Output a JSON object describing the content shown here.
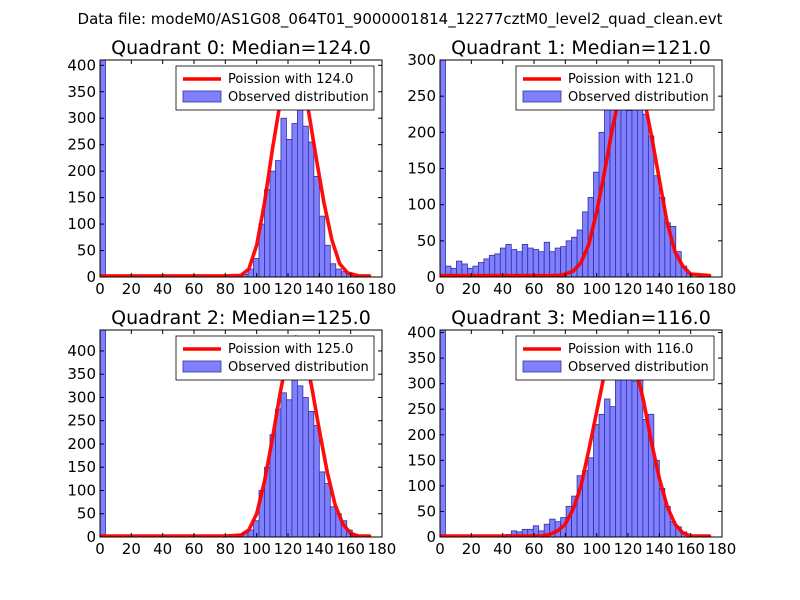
{
  "figure": {
    "suptitle": "Data file: modeM0/AS1G08_064T01_9000001814_12277cztM0_level2_quad_clean.evt"
  },
  "colors": {
    "bar_fill": "#8080ff",
    "bar_edge": "#3030a0",
    "model_line": "#ff0000",
    "axes": "#000000",
    "legend_edge": "#000000"
  },
  "chart_data": [
    {
      "type": "bar",
      "title": "Quadrant 0: Median=124.0",
      "xlabel": "",
      "ylabel": "",
      "xlim": [
        0,
        180
      ],
      "ylim": [
        0,
        410
      ],
      "xticks": [
        0,
        20,
        40,
        60,
        80,
        100,
        120,
        140,
        160,
        180
      ],
      "yticks": [
        0,
        50,
        100,
        150,
        200,
        250,
        300,
        350,
        400
      ],
      "grid": false,
      "legend": {
        "placement": "top-right",
        "entries": [
          "Poission with 124.0",
          "Observed distribution"
        ]
      },
      "series": [
        {
          "name": "Observed distribution",
          "kind": "histogram",
          "bin_width": 3.5,
          "bin_starts": [
            0,
            91,
            94.5,
            98,
            101.5,
            105,
            108.5,
            112,
            115.5,
            119,
            122.5,
            126,
            129.5,
            133,
            136.5,
            140,
            143.5,
            147,
            150.5,
            154,
            157.5
          ],
          "counts": [
            410,
            5,
            15,
            35,
            100,
            165,
            200,
            220,
            300,
            260,
            290,
            355,
            285,
            255,
            190,
            115,
            60,
            25,
            15,
            10,
            5
          ]
        },
        {
          "name": "Poission with 124.0",
          "kind": "line",
          "x": [
            0,
            60,
            80,
            90,
            95,
            100,
            105,
            110,
            115,
            120,
            124,
            128,
            133,
            138,
            143,
            148,
            153,
            158,
            165,
            172
          ],
          "y": [
            2,
            2,
            2,
            3,
            15,
            60,
            140,
            240,
            330,
            385,
            395,
            380,
            315,
            225,
            140,
            70,
            25,
            8,
            2,
            2
          ]
        }
      ]
    },
    {
      "type": "bar",
      "title": "Quadrant 1: Median=121.0",
      "xlabel": "",
      "ylabel": "",
      "xlim": [
        0,
        180
      ],
      "ylim": [
        0,
        300
      ],
      "xticks": [
        0,
        20,
        40,
        60,
        80,
        100,
        120,
        140,
        160,
        180
      ],
      "yticks": [
        0,
        50,
        100,
        150,
        200,
        250,
        300
      ],
      "grid": false,
      "legend": {
        "placement": "top-right",
        "entries": [
          "Poission with 121.0",
          "Observed distribution"
        ]
      },
      "series": [
        {
          "name": "Observed distribution",
          "kind": "histogram",
          "bin_width": 3.5,
          "bin_starts": [
            0,
            3.5,
            7,
            10.5,
            14,
            17.5,
            21,
            24.5,
            28,
            31.5,
            35,
            38.5,
            42,
            45.5,
            49,
            52.5,
            56,
            59.5,
            63,
            66.5,
            70,
            73.5,
            77,
            80.5,
            84,
            87.5,
            91,
            94.5,
            98,
            101.5,
            105,
            108.5,
            112,
            115.5,
            119,
            122.5,
            126,
            129.5,
            133,
            136.5,
            140,
            143.5,
            147,
            150.5,
            154,
            157.5
          ],
          "counts": [
            300,
            15,
            12,
            22,
            18,
            12,
            15,
            20,
            25,
            30,
            32,
            40,
            45,
            38,
            35,
            45,
            40,
            38,
            35,
            48,
            35,
            40,
            42,
            50,
            55,
            65,
            90,
            110,
            145,
            200,
            240,
            280,
            270,
            290,
            230,
            280,
            250,
            225,
            195,
            140,
            110,
            75,
            70,
            35,
            15,
            5
          ]
        },
        {
          "name": "Poission with 121.0",
          "kind": "line",
          "x": [
            0,
            60,
            75,
            80,
            85,
            90,
            95,
            100,
            105,
            110,
            115,
            121,
            126,
            130,
            135,
            140,
            145,
            150,
            155,
            160,
            172
          ],
          "y": [
            2,
            2,
            2,
            4,
            8,
            20,
            45,
            90,
            145,
            205,
            255,
            290,
            280,
            250,
            195,
            135,
            75,
            35,
            15,
            4,
            2
          ]
        }
      ]
    },
    {
      "type": "bar",
      "title": "Quadrant 2: Median=125.0",
      "xlabel": "",
      "ylabel": "",
      "xlim": [
        0,
        180
      ],
      "ylim": [
        0,
        445
      ],
      "xticks": [
        0,
        20,
        40,
        60,
        80,
        100,
        120,
        140,
        160,
        180
      ],
      "yticks": [
        0,
        50,
        100,
        150,
        200,
        250,
        300,
        350,
        400
      ],
      "grid": false,
      "legend": {
        "placement": "top-right",
        "entries": [
          "Poission with 125.0",
          "Observed distribution"
        ]
      },
      "series": [
        {
          "name": "Observed distribution",
          "kind": "histogram",
          "bin_width": 3.5,
          "bin_starts": [
            0,
            87.5,
            91,
            94.5,
            98,
            101.5,
            105,
            108.5,
            112,
            115.5,
            119,
            122.5,
            126,
            129.5,
            133,
            136.5,
            140,
            143.5,
            147,
            150.5,
            154,
            157.5,
            161
          ],
          "counts": [
            445,
            5,
            10,
            15,
            35,
            100,
            150,
            220,
            275,
            310,
            295,
            430,
            325,
            300,
            270,
            240,
            140,
            115,
            65,
            50,
            35,
            15,
            5
          ]
        },
        {
          "name": "Poission with 125.0",
          "kind": "line",
          "x": [
            0,
            60,
            80,
            90,
            95,
            100,
            105,
            110,
            115,
            120,
            125,
            130,
            135,
            140,
            145,
            150,
            155,
            160,
            165,
            172
          ],
          "y": [
            2,
            2,
            2,
            4,
            15,
            50,
            120,
            210,
            310,
            395,
            430,
            405,
            325,
            230,
            140,
            70,
            28,
            8,
            2,
            2
          ]
        }
      ]
    },
    {
      "type": "bar",
      "title": "Quadrant 3: Median=116.0",
      "xlabel": "",
      "ylabel": "",
      "xlim": [
        0,
        180
      ],
      "ylim": [
        0,
        405
      ],
      "xticks": [
        0,
        20,
        40,
        60,
        80,
        100,
        120,
        140,
        160,
        180
      ],
      "yticks": [
        0,
        50,
        100,
        150,
        200,
        250,
        300,
        350,
        400
      ],
      "grid": false,
      "legend": {
        "placement": "top-right",
        "entries": [
          "Poission with 116.0",
          "Observed distribution"
        ]
      },
      "series": [
        {
          "name": "Observed distribution",
          "kind": "histogram",
          "bin_width": 3.5,
          "bin_starts": [
            0,
            42,
            45.5,
            49,
            52.5,
            56,
            59.5,
            63,
            66.5,
            70,
            73.5,
            77,
            80.5,
            84,
            87.5,
            91,
            94.5,
            98,
            101.5,
            105,
            108.5,
            112,
            115.5,
            119,
            122.5,
            126,
            129.5,
            133,
            136.5,
            140,
            143.5,
            147,
            150.5,
            154
          ],
          "counts": [
            405,
            5,
            12,
            10,
            15,
            15,
            22,
            12,
            25,
            35,
            30,
            38,
            60,
            80,
            120,
            130,
            155,
            220,
            240,
            270,
            255,
            325,
            320,
            360,
            305,
            320,
            230,
            240,
            150,
            95,
            60,
            30,
            20,
            10
          ]
        },
        {
          "name": "Poission with 116.0",
          "kind": "line",
          "x": [
            0,
            50,
            65,
            70,
            75,
            80,
            85,
            90,
            95,
            100,
            105,
            110,
            116,
            121,
            125,
            130,
            135,
            140,
            145,
            150,
            155,
            160,
            172
          ],
          "y": [
            2,
            2,
            2,
            5,
            12,
            25,
            55,
            100,
            170,
            245,
            320,
            370,
            390,
            370,
            330,
            265,
            185,
            115,
            60,
            25,
            8,
            2,
            2
          ]
        }
      ]
    }
  ]
}
